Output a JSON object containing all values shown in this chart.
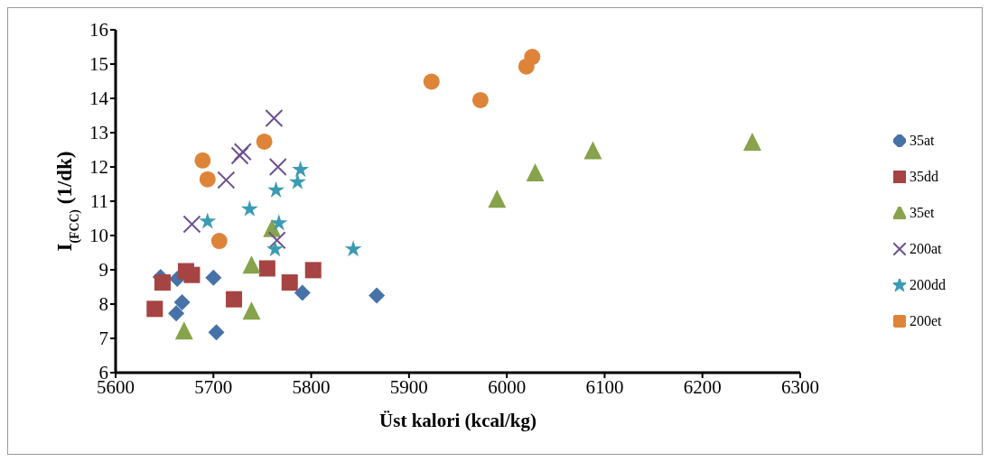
{
  "chart_data": {
    "type": "scatter",
    "xlabel": "Üst kalori (kcal/kg)",
    "ylabel": "I$_{(FCC)}$ (1/dk)",
    "xlim": [
      5600,
      6300
    ],
    "ylim": [
      6,
      16
    ],
    "xticks": [
      5600,
      5700,
      5800,
      5900,
      6000,
      6100,
      6200,
      6300
    ],
    "yticks": [
      6,
      7,
      8,
      9,
      10,
      11,
      12,
      13,
      14,
      15,
      16
    ],
    "grid": false,
    "legend": "right",
    "series": [
      {
        "name": "35at",
        "color": "#4672a8",
        "marker": "diamond",
        "x": [
          5646,
          5663,
          5700,
          5668,
          5662,
          5703,
          5791,
          5867
        ],
        "values": [
          8.79,
          8.74,
          8.77,
          8.05,
          7.73,
          7.18,
          8.33,
          8.25
        ]
      },
      {
        "name": "35dd",
        "color": "#a54442",
        "marker": "square",
        "x": [
          5640,
          5648,
          5672,
          5678,
          5721,
          5755,
          5778,
          5802
        ],
        "values": [
          7.86,
          8.63,
          8.96,
          8.85,
          8.14,
          9.04,
          8.63,
          8.99
        ]
      },
      {
        "name": "35et",
        "color": "#87a34b",
        "marker": "triangle",
        "x": [
          5670,
          5739,
          5739,
          5760,
          5990,
          6029,
          6088,
          6251
        ],
        "values": [
          7.23,
          7.81,
          9.15,
          10.22,
          11.07,
          11.84,
          12.49,
          12.74
        ]
      },
      {
        "name": "200at",
        "color": "#6e5190",
        "marker": "cross",
        "x": [
          5678,
          5713,
          5727,
          5730,
          5762,
          5766,
          5765
        ],
        "values": [
          10.33,
          11.62,
          12.33,
          12.44,
          13.42,
          12.0,
          9.86
        ]
      },
      {
        "name": "200dd",
        "color": "#3b9bb3",
        "marker": "star",
        "x": [
          5694,
          5737,
          5764,
          5767,
          5763,
          5786,
          5789,
          5843
        ],
        "values": [
          10.41,
          10.77,
          11.32,
          10.36,
          9.6,
          11.56,
          11.92,
          9.6
        ]
      },
      {
        "name": "200et",
        "color": "#de8439",
        "marker": "circle",
        "x": [
          5689,
          5694,
          5706,
          5752,
          5923,
          5973,
          6020,
          6026
        ],
        "values": [
          12.19,
          11.64,
          9.84,
          12.74,
          14.49,
          13.95,
          14.93,
          15.21
        ]
      }
    ]
  }
}
